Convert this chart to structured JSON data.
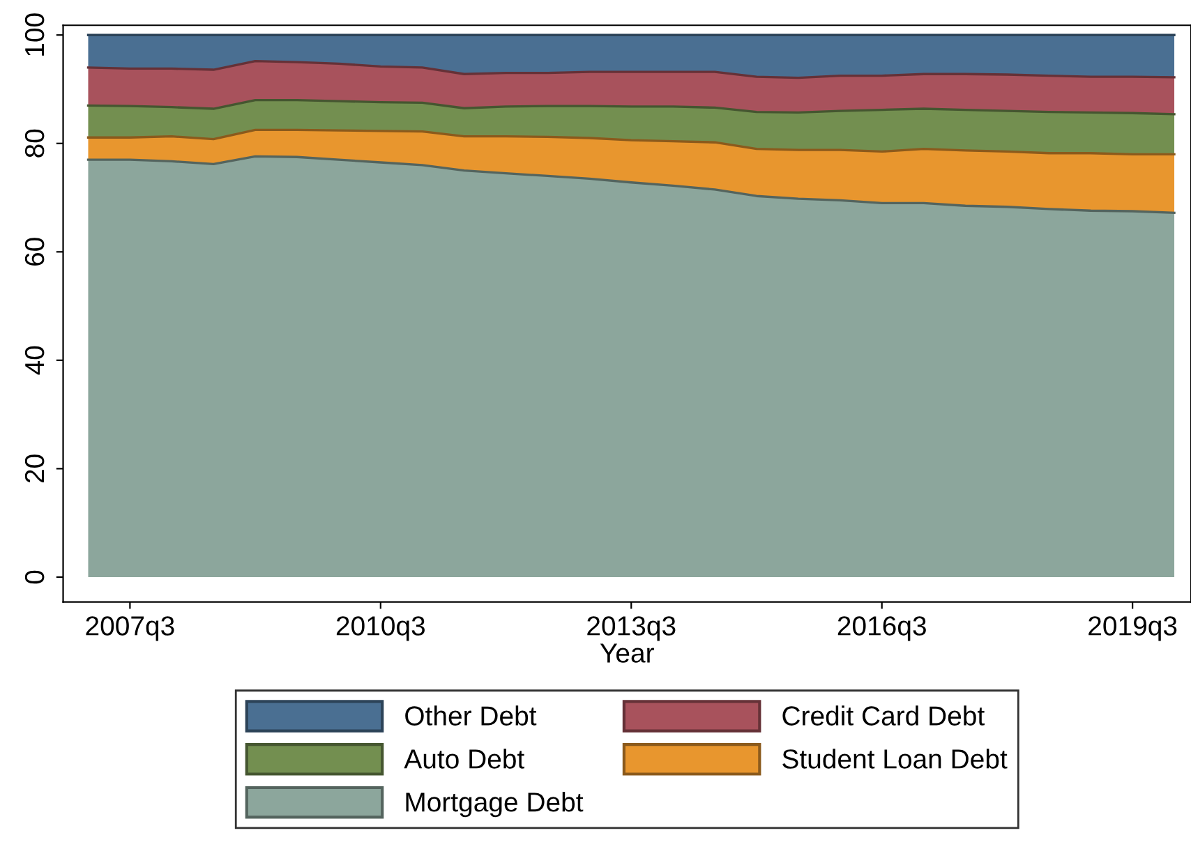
{
  "chart_data": {
    "type": "area",
    "stacked": true,
    "xlabel": "Year",
    "categories": [
      null,
      "2007q3",
      null,
      null,
      null,
      null,
      null,
      "2010q3",
      null,
      null,
      null,
      null,
      null,
      "2013q3",
      null,
      null,
      null,
      null,
      null,
      "2016q3",
      null,
      null,
      null,
      null,
      null,
      "2019q3",
      null
    ],
    "series": [
      {
        "name": "Mortgage Debt",
        "color": "#8ca69c",
        "values": [
          77,
          77,
          76.7,
          76.2,
          77.6,
          77.5,
          77,
          76.5,
          76,
          75,
          74.5,
          74,
          73.5,
          72.8,
          72.2,
          71.5,
          70.3,
          69.8,
          69.5,
          69,
          69,
          68.5,
          68.3,
          67.9,
          67.6,
          67.5,
          67.2
        ]
      },
      {
        "name": "Student Loan Debt",
        "color": "#e8962e",
        "values": [
          4.1,
          4.1,
          4.6,
          4.6,
          4.9,
          5.0,
          5.4,
          5.8,
          6.2,
          6.3,
          6.8,
          7.2,
          7.5,
          7.8,
          8.2,
          8.7,
          8.7,
          9.0,
          9.3,
          9.5,
          10.0,
          10.2,
          10.2,
          10.3,
          10.6,
          10.5,
          10.8
        ]
      },
      {
        "name": "Auto Debt",
        "color": "#738f50",
        "values": [
          5.9,
          5.8,
          5.4,
          5.6,
          5.5,
          5.5,
          5.4,
          5.3,
          5.3,
          5.2,
          5.5,
          5.7,
          5.9,
          6.2,
          6.4,
          6.4,
          6.8,
          6.9,
          7.2,
          7.7,
          7.4,
          7.5,
          7.5,
          7.6,
          7.5,
          7.6,
          7.4
        ]
      },
      {
        "name": "Credit Card Debt",
        "color": "#a8525c",
        "values": [
          7.0,
          6.9,
          7.1,
          7.2,
          7.2,
          7.0,
          6.9,
          6.6,
          6.5,
          6.3,
          6.2,
          6.1,
          6.3,
          6.4,
          6.4,
          6.6,
          6.5,
          6.4,
          6.5,
          6.3,
          6.4,
          6.6,
          6.7,
          6.7,
          6.6,
          6.7,
          6.8
        ]
      },
      {
        "name": "Other Debt",
        "color": "#4a6f92",
        "values": [
          6.0,
          6.2,
          6.2,
          6.4,
          4.8,
          5.0,
          5.3,
          5.8,
          6.0,
          7.2,
          7.0,
          7.0,
          6.8,
          6.8,
          6.8,
          6.8,
          7.7,
          7.9,
          7.5,
          7.5,
          7.2,
          7.2,
          7.3,
          7.5,
          7.7,
          7.7,
          7.8
        ]
      }
    ],
    "ylim": [
      -4.6,
      101.8
    ],
    "yticks": [
      0,
      20,
      40,
      60,
      80,
      100
    ],
    "grid": false,
    "legend": "bottom"
  }
}
